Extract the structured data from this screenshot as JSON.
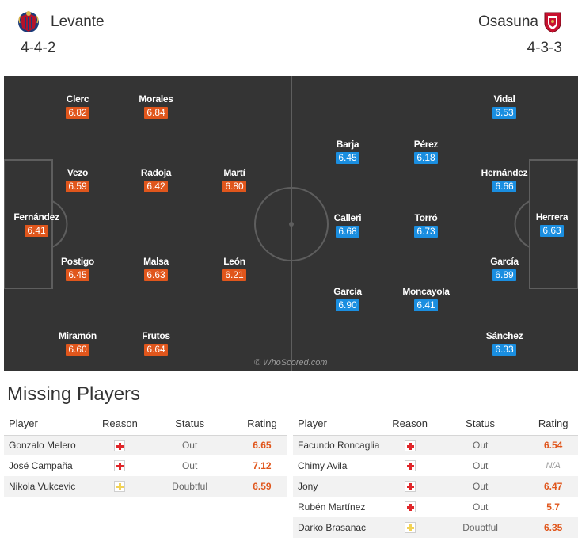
{
  "match": {
    "home": {
      "name": "Levante",
      "formation": "4-4-2",
      "crest": "levante-crest-icon",
      "rating_color": "#e0561c"
    },
    "away": {
      "name": "Osasuna",
      "formation": "4-3-3",
      "crest": "osasuna-crest-icon",
      "rating_color": "#1a8ee0"
    }
  },
  "pitch": {
    "watermark": "© WhoScored.com",
    "home_players": [
      {
        "name": "Fernández",
        "rating": "6.41"
      },
      {
        "name": "Clerc",
        "rating": "6.82"
      },
      {
        "name": "Vezo",
        "rating": "6.59"
      },
      {
        "name": "Postigo",
        "rating": "6.45"
      },
      {
        "name": "Miramón",
        "rating": "6.60"
      },
      {
        "name": "Morales",
        "rating": "6.84"
      },
      {
        "name": "Radoja",
        "rating": "6.42"
      },
      {
        "name": "Malsa",
        "rating": "6.63"
      },
      {
        "name": "Frutos",
        "rating": "6.64"
      },
      {
        "name": "Martí",
        "rating": "6.80"
      },
      {
        "name": "León",
        "rating": "6.21"
      }
    ],
    "away_players": [
      {
        "name": "Herrera",
        "rating": "6.63"
      },
      {
        "name": "Vidal",
        "rating": "6.53"
      },
      {
        "name": "Hernández",
        "rating": "6.66"
      },
      {
        "name": "García",
        "rating": "6.89"
      },
      {
        "name": "Sánchez",
        "rating": "6.33"
      },
      {
        "name": "Barja",
        "rating": "6.45"
      },
      {
        "name": "Pérez",
        "rating": "6.18"
      },
      {
        "name": "Calleri",
        "rating": "6.68"
      },
      {
        "name": "Torró",
        "rating": "6.73"
      },
      {
        "name": "García",
        "rating": "6.90"
      },
      {
        "name": "Moncayola",
        "rating": "6.41"
      }
    ]
  },
  "missing": {
    "title": "Missing Players",
    "headers": {
      "player": "Player",
      "reason": "Reason",
      "status": "Status",
      "rating": "Rating"
    },
    "home": [
      {
        "player": "Gonzalo Melero",
        "reason": "injury-icon",
        "status": "Out",
        "rating": "6.65"
      },
      {
        "player": "José Campaña",
        "reason": "injury-icon",
        "status": "Out",
        "rating": "7.12"
      },
      {
        "player": "Nikola Vukcevic",
        "reason": "doubtful-icon",
        "status": "Doubtful",
        "rating": "6.59"
      }
    ],
    "away": [
      {
        "player": "Facundo Roncaglia",
        "reason": "injury-icon",
        "status": "Out",
        "rating": "6.54"
      },
      {
        "player": "Chimy Avila",
        "reason": "injury-icon",
        "status": "Out",
        "rating": "N/A"
      },
      {
        "player": "Jony",
        "reason": "injury-icon",
        "status": "Out",
        "rating": "6.47"
      },
      {
        "player": "Rubén Martínez",
        "reason": "injury-icon",
        "status": "Out",
        "rating": "5.7"
      },
      {
        "player": "Darko Brasanac",
        "reason": "doubtful-icon",
        "status": "Doubtful",
        "rating": "6.35"
      }
    ]
  }
}
